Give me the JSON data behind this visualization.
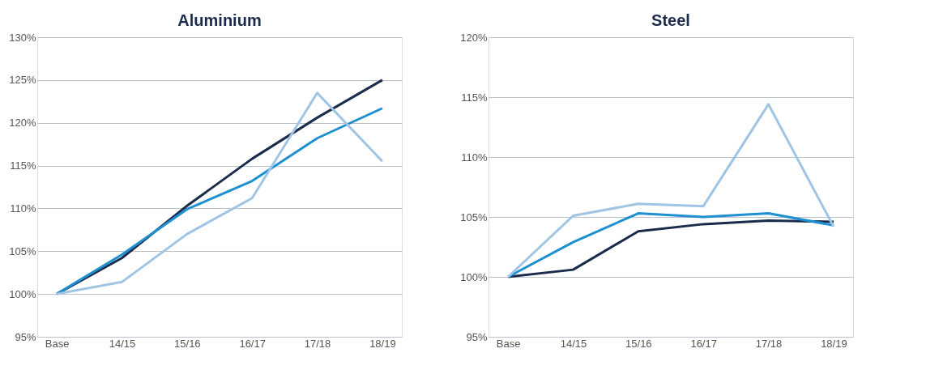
{
  "chart_data": [
    {
      "type": "line",
      "title": "Aluminium",
      "categories": [
        "Base",
        "14/15",
        "15/16",
        "16/17",
        "17/18",
        "18/19"
      ],
      "series": [
        {
          "color": "#1a2b4c",
          "values": [
            100,
            104.2,
            110.3,
            115.8,
            120.6,
            125
          ]
        },
        {
          "color": "#1e8fd0",
          "values": [
            100,
            104.6,
            109.9,
            113.2,
            118.2,
            121.7
          ]
        },
        {
          "color": "#9fc4e4",
          "values": [
            100,
            101.4,
            107.0,
            111.2,
            123.5,
            115.5
          ]
        }
      ],
      "ylim": [
        95,
        130
      ],
      "yticks": [
        {
          "value": 95,
          "label": "95%"
        },
        {
          "value": 100,
          "label": "100%"
        },
        {
          "value": 105,
          "label": "105%"
        },
        {
          "value": 110,
          "label": "110%"
        },
        {
          "value": 115,
          "label": "115%"
        },
        {
          "value": 120,
          "label": "120%"
        },
        {
          "value": 125,
          "label": "125%"
        },
        {
          "value": 130,
          "label": "130%"
        }
      ],
      "grid": "y",
      "marker": "none",
      "line_style": "solid"
    },
    {
      "type": "line",
      "title": "Steel",
      "categories": [
        "Base",
        "14/15",
        "15/16",
        "16/17",
        "17/18",
        "18/19"
      ],
      "series": [
        {
          "color": "#1a2b4c",
          "values": [
            100,
            100.6,
            103.8,
            104.4,
            104.7,
            104.6
          ]
        },
        {
          "color": "#1e8fd0",
          "values": [
            100,
            102.9,
            105.3,
            105.0,
            105.3,
            104.3
          ]
        },
        {
          "color": "#9fc4e4",
          "values": [
            100,
            105.1,
            106.1,
            105.9,
            114.4,
            104.2
          ]
        }
      ],
      "ylim": [
        95,
        120
      ],
      "yticks": [
        {
          "value": 95,
          "label": "95%"
        },
        {
          "value": 100,
          "label": "100%"
        },
        {
          "value": 105,
          "label": "105%"
        },
        {
          "value": 110,
          "label": "110%"
        },
        {
          "value": 115,
          "label": "115%"
        },
        {
          "value": 120,
          "label": "120%"
        }
      ],
      "grid": "y",
      "marker": "none",
      "line_style": "solid"
    }
  ]
}
